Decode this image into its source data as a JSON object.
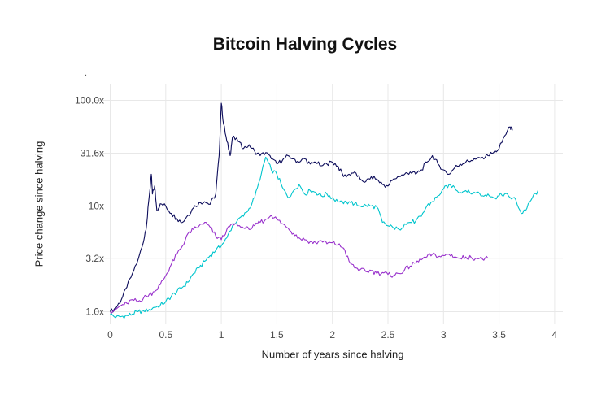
{
  "chart_data": {
    "type": "line",
    "title": "Bitcoin Halving Cycles",
    "subtitle": ".",
    "xlabel": "Number of years since halving",
    "ylabel": "Price change since halving",
    "y_scale": "log10",
    "xlim": [
      0,
      4
    ],
    "ylim": [
      0.8,
      130
    ],
    "grid": "major gridlines only, light gray on white background",
    "legend": "none",
    "x_ticks": [
      0,
      0.5,
      1,
      1.5,
      2,
      2.5,
      3,
      3.5,
      4
    ],
    "x_tick_labels": [
      "0",
      "0.5",
      "1",
      "1.5",
      "2",
      "2.5",
      "3",
      "3.5",
      "4"
    ],
    "y_ticks": [
      1.0,
      3.2,
      10,
      31.6,
      100
    ],
    "y_tick_labels": [
      "1.0x",
      "3.2x",
      "10x",
      "31.6x",
      "100.0x"
    ],
    "colors": {
      "background": "#FFFFFF",
      "grid": "#E8E8E8",
      "tick_text": "#4A4A4A",
      "title_text": "#111111"
    },
    "series": [
      {
        "name": "cycle-1-navy",
        "color": "#0D0D5B",
        "x": [
          0,
          0.05,
          0.1,
          0.15,
          0.2,
          0.25,
          0.3,
          0.33,
          0.35,
          0.37,
          0.38,
          0.4,
          0.42,
          0.45,
          0.5,
          0.55,
          0.6,
          0.65,
          0.7,
          0.75,
          0.8,
          0.85,
          0.9,
          0.95,
          0.98,
          1.0,
          1.02,
          1.05,
          1.08,
          1.1,
          1.15,
          1.2,
          1.25,
          1.3,
          1.35,
          1.4,
          1.45,
          1.5,
          1.55,
          1.6,
          1.65,
          1.7,
          1.75,
          1.8,
          1.85,
          1.9,
          1.95,
          2.0,
          2.05,
          2.1,
          2.15,
          2.2,
          2.25,
          2.3,
          2.35,
          2.4,
          2.45,
          2.5,
          2.55,
          2.6,
          2.65,
          2.7,
          2.75,
          2.8,
          2.85,
          2.9,
          2.95,
          3.0,
          3.05,
          3.1,
          3.15,
          3.2,
          3.25,
          3.3,
          3.35,
          3.4,
          3.45,
          3.5,
          3.55,
          3.6,
          3.62
        ],
        "values": [
          1.0,
          1.08,
          1.3,
          1.7,
          2.3,
          3.1,
          4.6,
          7,
          12,
          20,
          13,
          15.5,
          9,
          10.5,
          10,
          8.5,
          7.6,
          7.0,
          8.2,
          9.6,
          10.8,
          11,
          10.4,
          13,
          30,
          94,
          60,
          41,
          30,
          45,
          41,
          35,
          38,
          33,
          30,
          32,
          28,
          25,
          27,
          30,
          28,
          26,
          28,
          25,
          26,
          24,
          25,
          26,
          24,
          19,
          20,
          21,
          18,
          17,
          19,
          18,
          16,
          15.5,
          18,
          19,
          20,
          21,
          20,
          22,
          26,
          30,
          25,
          22,
          20,
          23,
          25,
          26,
          27,
          28,
          29,
          30,
          32,
          35,
          46,
          56,
          52
        ]
      },
      {
        "name": "cycle-2-turquoise",
        "color": "#00C5CD",
        "x_start": 0,
        "x_step": 0.05,
        "values": [
          0.95,
          0.88,
          0.9,
          0.92,
          0.95,
          1.0,
          1.02,
          1.05,
          1.1,
          1.15,
          1.25,
          1.4,
          1.55,
          1.7,
          1.9,
          2.3,
          2.6,
          3.0,
          3.4,
          3.8,
          4.2,
          5.0,
          6.5,
          7.5,
          8.0,
          9.5,
          12,
          18,
          29,
          22,
          20,
          15,
          12,
          14,
          16,
          13,
          14,
          13.5,
          12.5,
          13,
          12,
          11,
          10.5,
          11,
          10.5,
          10,
          10.2,
          10,
          9.8,
          7.0,
          6.5,
          6.2,
          6.0,
          6.8,
          7.0,
          7.2,
          8.0,
          10,
          11,
          12.5,
          14.5,
          16,
          15,
          13.5,
          14,
          13,
          13.5,
          12.5,
          13,
          12,
          12.5,
          13,
          12,
          11.5,
          8.5,
          9.5,
          12,
          14
        ]
      },
      {
        "name": "cycle-3-purple",
        "color": "#9932CC",
        "x_start": 0,
        "x_step": 0.05,
        "values": [
          1.0,
          1.05,
          1.15,
          1.2,
          1.3,
          1.25,
          1.35,
          1.45,
          1.55,
          1.8,
          2.2,
          2.8,
          3.5,
          4.2,
          5.5,
          6.0,
          6.5,
          7.0,
          6.3,
          5.2,
          4.8,
          6.0,
          6.8,
          6.5,
          6.2,
          6.0,
          6.5,
          7.0,
          7.5,
          8.2,
          7.5,
          6.8,
          6.2,
          5.5,
          5.0,
          4.8,
          4.6,
          4.5,
          4.7,
          4.4,
          4.5,
          4.3,
          4.0,
          3.0,
          2.6,
          2.5,
          2.4,
          2.45,
          2.3,
          2.35,
          2.25,
          2.2,
          2.3,
          2.5,
          2.7,
          2.9,
          3.1,
          3.3,
          3.5,
          3.3,
          3.4,
          3.5,
          3.3,
          3.2,
          3.3,
          3.25,
          3.2,
          3.15,
          3.2
        ]
      }
    ]
  }
}
